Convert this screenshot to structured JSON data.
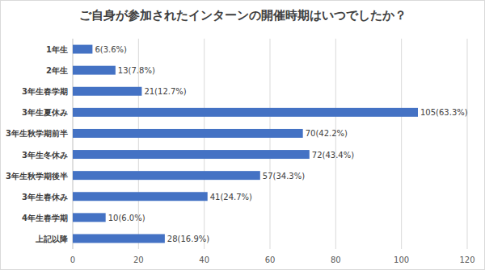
{
  "chart_data": {
    "type": "bar",
    "orientation": "horizontal",
    "title": "ご自身が参加されたインターンの開催時期はいつでしたか？",
    "categories": [
      "1年生",
      "2年生",
      "3年生春学期",
      "3年生夏休み",
      "3年生秋学期前半",
      "3年生冬休み",
      "3年生秋学期後半",
      "3年生春休み",
      "4年生春学期",
      "上記以降"
    ],
    "values": [
      6,
      13,
      21,
      105,
      70,
      72,
      57,
      41,
      10,
      28
    ],
    "value_labels": [
      "6(3.6%)",
      "13(7.8%)",
      "21(12.7%)",
      "105(63.3%)",
      "70(42.2%)",
      "72(43.4%)",
      "57(34.3%)",
      "41(24.7%)",
      "10(6.0%)",
      "28(16.9%)"
    ],
    "color": "#4472c4",
    "xlim": [
      0,
      120
    ],
    "xticks": [
      0,
      20,
      40,
      60,
      80,
      100,
      120
    ],
    "grid": true,
    "data_labels": true
  }
}
